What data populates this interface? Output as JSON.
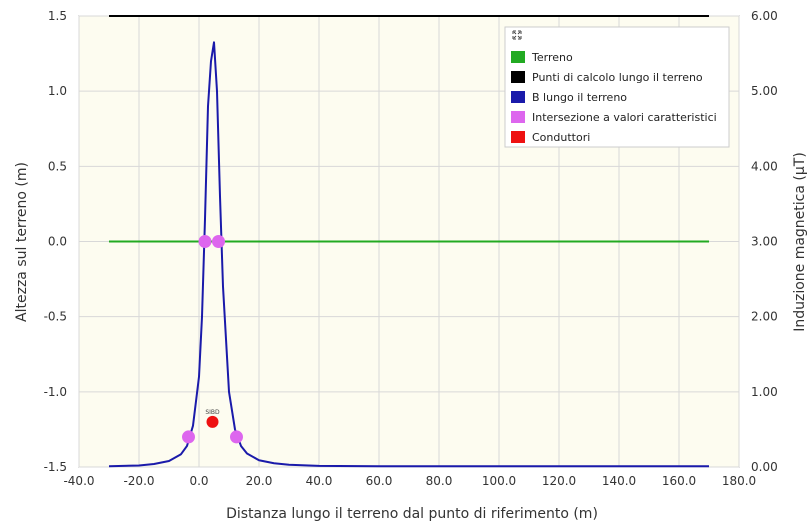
{
  "chart_data": {
    "type": "line",
    "xlabel": "Distanza lungo il terreno dal punto di riferimento (m)",
    "ylabel_left": "Altezza sul terreno (m)",
    "ylabel_right": "Induzione magnetica (μT)",
    "xlim": [
      -40,
      180
    ],
    "ylim_left": [
      -1.5,
      1.5
    ],
    "ylim_right": [
      0,
      6
    ],
    "x_ticks": [
      "-40.0",
      "-20.0",
      "0.0",
      "20.0",
      "40.0",
      "60.0",
      "80.0",
      "100.0",
      "120.0",
      "140.0",
      "160.0",
      "180.0"
    ],
    "y_left_ticks": [
      "-1.5",
      "-1.0",
      "-0.5",
      "0.0",
      "0.5",
      "1.0",
      "1.5"
    ],
    "y_right_ticks": [
      "0.00",
      "1.00",
      "2.00",
      "3.00",
      "4.00",
      "5.00",
      "6.00"
    ],
    "grid": true,
    "legend_position": "top-right",
    "series": [
      {
        "name": "Terreno",
        "color": "#22aa22",
        "axis": "left",
        "x": [
          -30,
          170
        ],
        "y": [
          0,
          0
        ]
      },
      {
        "name": "Punti di calcolo lungo il terreno",
        "color": "#000000",
        "axis": "left",
        "x": [
          -30,
          170
        ],
        "y": [
          1.5,
          1.5
        ]
      },
      {
        "name": "B lungo il terreno",
        "color": "#1a1aaa",
        "axis": "right",
        "x": [
          -30,
          -20,
          -15,
          -10,
          -6,
          -4,
          -2,
          0,
          1,
          2,
          3,
          4,
          5,
          6,
          7,
          8,
          10,
          12,
          14,
          16,
          20,
          25,
          30,
          40,
          60,
          80,
          100,
          140,
          170
        ],
        "y": [
          0.01,
          0.02,
          0.04,
          0.08,
          0.17,
          0.28,
          0.55,
          1.2,
          2.0,
          3.3,
          4.8,
          5.4,
          5.65,
          5.0,
          3.6,
          2.4,
          1.0,
          0.5,
          0.28,
          0.18,
          0.09,
          0.05,
          0.03,
          0.015,
          0.01,
          0.01,
          0.01,
          0.01,
          0.01
        ]
      },
      {
        "name": "Intersezione a valori caratteristici",
        "color": "#dd66ee",
        "axis": "left",
        "points": [
          [
            -3.5,
            -1.3
          ],
          [
            2,
            0
          ],
          [
            6.5,
            0
          ],
          [
            12.5,
            -1.3
          ]
        ]
      },
      {
        "name": "Conduttori",
        "color": "#ee1111",
        "axis": "left",
        "points": [
          [
            4.5,
            -1.2
          ]
        ]
      }
    ],
    "conductor_label": "SIBD"
  }
}
